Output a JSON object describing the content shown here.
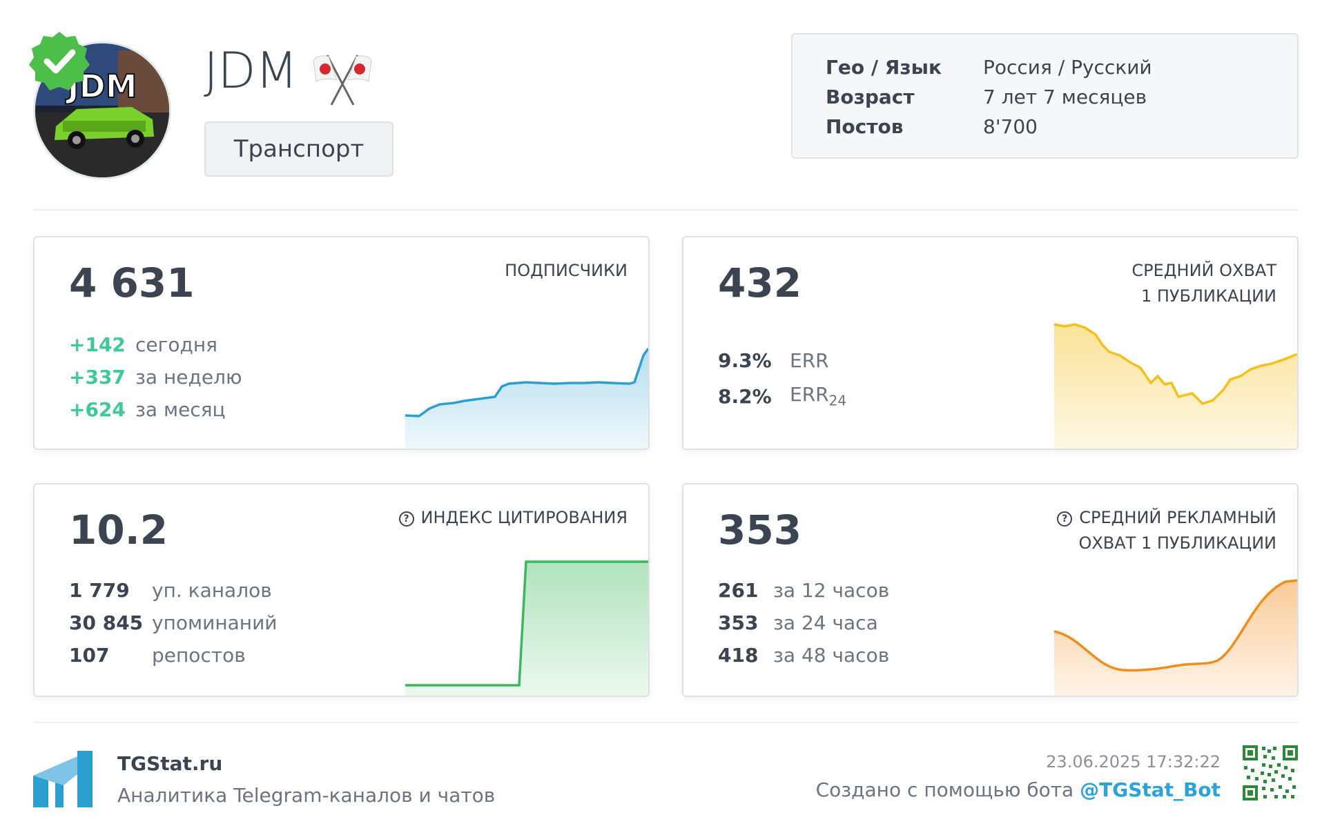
{
  "channel": {
    "title": "JDM",
    "category": "Транспорт",
    "avatar_text": "JDM"
  },
  "info": [
    {
      "key": "Гео / Язык",
      "value": "Россия / Русский"
    },
    {
      "key": "Возраст",
      "value": "7 лет 7 месяцев"
    },
    {
      "key": "Постов",
      "value": "8'700"
    }
  ],
  "cards": {
    "subscribers": {
      "value": "4 631",
      "label": "ПОДПИСЧИКИ",
      "rows": [
        {
          "num": "+142",
          "desc": "сегодня"
        },
        {
          "num": "+337",
          "desc": "за неделю"
        },
        {
          "num": "+624",
          "desc": "за месяц"
        }
      ],
      "color": "#2a9fd0"
    },
    "reach": {
      "value": "432",
      "label_line1": "СРЕДНИЙ ОХВАТ",
      "label_line2": "1 ПУБЛИКАЦИИ",
      "rows": [
        {
          "num": "9.3%",
          "desc": "ERR"
        },
        {
          "num": "8.2%",
          "desc": "ERR",
          "sub": "24"
        }
      ],
      "color": "#f5c01a"
    },
    "citation": {
      "value": "10.2",
      "label": "ИНДЕКС ЦИТИРОВАНИЯ",
      "rows": [
        {
          "num": "1 779",
          "desc": "уп. каналов"
        },
        {
          "num": "30 845",
          "desc": "упоминаний"
        },
        {
          "num": "107",
          "desc": "репостов"
        }
      ],
      "color": "#3cb85c"
    },
    "ad_reach": {
      "value": "353",
      "label_line1": "СРЕДНИЙ РЕКЛАМНЫЙ",
      "label_line2": "ОХВАТ 1 ПУБЛИКАЦИИ",
      "rows": [
        {
          "num": "261",
          "desc": "за 12 часов"
        },
        {
          "num": "353",
          "desc": "за 24 часа"
        },
        {
          "num": "418",
          "desc": "за 48 часов"
        }
      ],
      "color": "#f28c1a"
    }
  },
  "footer": {
    "brand": "TGStat.ru",
    "tagline": "Аналитика Telegram-каналов и чатов",
    "timestamp": "23.06.2025 17:32:22",
    "created_prefix": "Создано с помощью бота ",
    "bot_link": "@TGStat_Bot"
  },
  "icons": {
    "verified": "verified-badge-icon",
    "flags": "crossed-japan-flags-icon",
    "help": "question-circle-icon",
    "logo": "tgstat-logo-icon",
    "qr": "qr-code-icon"
  }
}
